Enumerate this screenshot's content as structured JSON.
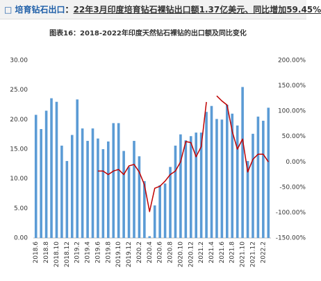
{
  "header": {
    "marker": "□ 培育钻石出口",
    "separator": "：",
    "text": "22年3月印度培育钻石裸钻出口额1.37亿美元、同比增加59.45%"
  },
  "chart_data": {
    "type": "bar",
    "title": "图表16：2018-2022年印度天然钻石裸钻的出口额及同比变化",
    "categories": [
      "2018.6",
      null,
      "2018.8",
      null,
      "2018.10",
      null,
      "2018.12",
      null,
      "2019.2",
      null,
      "2019.4",
      null,
      "2019.6",
      null,
      "2019.8",
      null,
      "2019.10",
      null,
      "2019.12",
      null,
      "2020.2",
      null,
      "2020.4",
      null,
      "2020.6",
      null,
      "2020.8",
      null,
      "2020.10",
      null,
      "2020.12",
      null,
      "2021.2",
      null,
      "2021.4",
      null,
      "2021.6",
      null,
      "2021.8",
      null,
      "2021.10",
      null,
      "2021.12",
      null,
      "2022.2",
      null
    ],
    "series": [
      {
        "type": "bar",
        "color": "#5b9bd5",
        "values": [
          20.8,
          18.4,
          21.5,
          23.6,
          23.0,
          15.6,
          13.0,
          17.4,
          23.4,
          18.5,
          16.4,
          18.5,
          16.8,
          15.0,
          16.3,
          19.4,
          19.4,
          14.7,
          12.0,
          16.4,
          13.8,
          9.6,
          0.3,
          5.5,
          8.9,
          9.2,
          12.0,
          15.6,
          17.5,
          16.5,
          17.2,
          17.8,
          17.8,
          21.3,
          22.3,
          20.1,
          20.0,
          22.5,
          21.0,
          19.0,
          25.5,
          13.0,
          17.6,
          20.5,
          19.8,
          22.0
        ]
      },
      {
        "type": "line",
        "axis": "y2",
        "color": "#c00000",
        "values": [
          null,
          null,
          null,
          null,
          null,
          null,
          null,
          null,
          null,
          null,
          null,
          null,
          -18,
          -18,
          -25,
          -18,
          -15,
          -25,
          -8,
          -5,
          -20,
          -45,
          -98,
          -52,
          -48,
          -38,
          -25,
          -18,
          0,
          40,
          38,
          10,
          30,
          118,
          null,
          130,
          120,
          112,
          60,
          25,
          45,
          -20,
          5,
          15,
          15,
          0
        ]
      }
    ],
    "ylim": [
      0,
      30
    ],
    "yticks": [
      {
        "value": 0,
        "label": "0.00"
      },
      {
        "value": 5,
        "label": "5.00"
      },
      {
        "value": 10,
        "label": "10.00"
      },
      {
        "value": 15,
        "label": "15.00"
      },
      {
        "value": 20,
        "label": "20.00"
      },
      {
        "value": 25,
        "label": "25.00"
      },
      {
        "value": 30,
        "label": "30.00"
      }
    ],
    "y2lim": [
      -150,
      200
    ],
    "y2ticks": [
      {
        "value": -150,
        "label": "-150.00%"
      },
      {
        "value": -100,
        "label": "-100.00%"
      },
      {
        "value": -50,
        "label": "-50.00%"
      },
      {
        "value": 0,
        "label": "0.00%"
      },
      {
        "value": 50,
        "label": "50.00%"
      },
      {
        "value": 100,
        "label": "100.00%"
      },
      {
        "value": 150,
        "label": "150.00%"
      },
      {
        "value": 200,
        "label": "200.00%"
      }
    ]
  }
}
